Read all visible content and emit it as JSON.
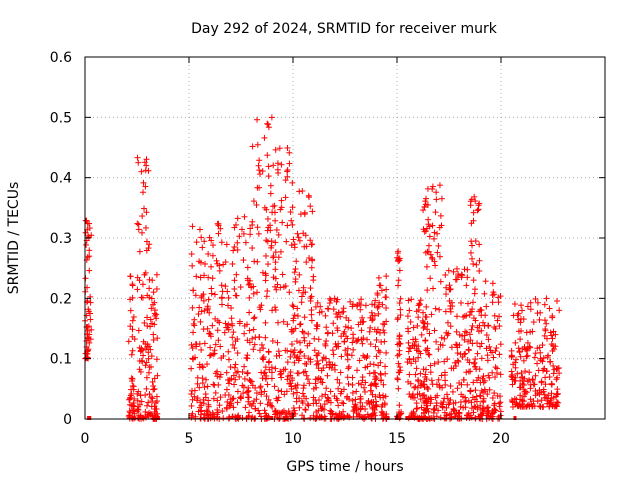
{
  "chart_data": {
    "type": "scatter",
    "title": "Day 292 of 2024, SRMTID for receiver murk",
    "xlabel": "GPS time / hours",
    "ylabel": "SRMTID / TECUs",
    "xlim": [
      0,
      25
    ],
    "ylim": [
      0,
      0.6
    ],
    "xticks": [
      "0",
      "5",
      "10",
      "15",
      "20"
    ],
    "yticks": [
      "0",
      "0.1",
      "0.2",
      "0.3",
      "0.4",
      "0.5",
      "0.6"
    ],
    "grid": true,
    "marker": "plus",
    "color": "#ff0000",
    "clusters": [
      {
        "x": [
          0.0,
          0.3
        ],
        "y": [
          0.1,
          0.33
        ]
      },
      {
        "x": [
          2.1,
          2.4
        ],
        "y": [
          0.0,
          0.24
        ]
      },
      {
        "x": [
          2.5,
          3.1
        ],
        "y": [
          0.0,
          0.44
        ]
      },
      {
        "x": [
          3.1,
          3.5
        ],
        "y": [
          0.0,
          0.24
        ]
      },
      {
        "x": [
          5.1,
          6.0
        ],
        "y": [
          0.0,
          0.32
        ]
      },
      {
        "x": [
          6.0,
          8.0
        ],
        "y": [
          0.0,
          0.34
        ]
      },
      {
        "x": [
          8.0,
          9.0
        ],
        "y": [
          0.0,
          0.5
        ]
      },
      {
        "x": [
          9.0,
          10.0
        ],
        "y": [
          0.0,
          0.45
        ]
      },
      {
        "x": [
          10.0,
          11.0
        ],
        "y": [
          0.0,
          0.38
        ]
      },
      {
        "x": [
          11.0,
          12.5
        ],
        "y": [
          0.0,
          0.2
        ]
      },
      {
        "x": [
          12.5,
          14.0
        ],
        "y": [
          0.0,
          0.2
        ]
      },
      {
        "x": [
          14.0,
          14.5
        ],
        "y": [
          0.0,
          0.24
        ]
      },
      {
        "x": [
          15.0,
          15.2
        ],
        "y": [
          0.0,
          0.28
        ]
      },
      {
        "x": [
          15.5,
          16.5
        ],
        "y": [
          0.0,
          0.2
        ]
      },
      {
        "x": [
          16.2,
          17.2
        ],
        "y": [
          0.0,
          0.39
        ]
      },
      {
        "x": [
          17.2,
          18.5
        ],
        "y": [
          0.0,
          0.25
        ]
      },
      {
        "x": [
          18.5,
          19.0
        ],
        "y": [
          0.0,
          0.38
        ]
      },
      {
        "x": [
          19.0,
          20.0
        ],
        "y": [
          0.0,
          0.23
        ]
      },
      {
        "x": [
          20.5,
          22.8
        ],
        "y": [
          0.02,
          0.2
        ]
      }
    ],
    "zero_band_segments": [
      [
        0.1,
        0.3
      ],
      [
        2.3,
        2.4
      ],
      [
        3.2,
        3.6
      ],
      [
        7.3,
        7.4
      ],
      [
        8.9,
        9.0
      ],
      [
        14.5,
        14.6
      ],
      [
        14.9,
        15.2
      ],
      [
        15.4,
        16.3
      ],
      [
        20.6,
        20.7
      ]
    ]
  }
}
